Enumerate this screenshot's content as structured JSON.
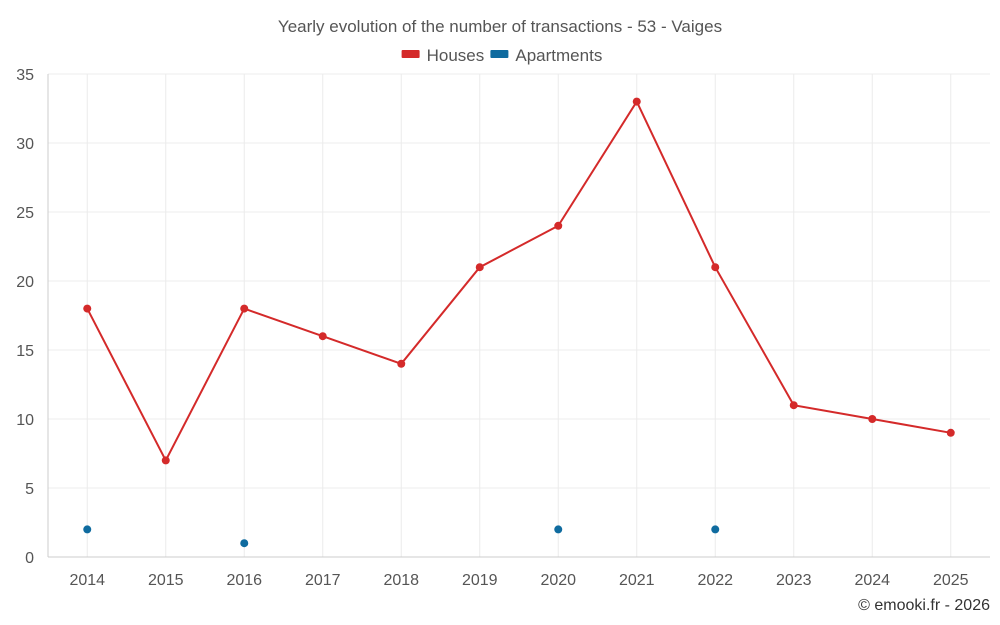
{
  "chart_data": {
    "type": "line",
    "title": "Yearly evolution of the number of transactions - 53 - Vaiges",
    "xlabel": "",
    "ylabel": "",
    "categories": [
      "2014",
      "2015",
      "2016",
      "2017",
      "2018",
      "2019",
      "2020",
      "2021",
      "2022",
      "2023",
      "2024",
      "2025"
    ],
    "ylim": [
      0,
      35
    ],
    "yticks": [
      0,
      5,
      10,
      15,
      20,
      25,
      30,
      35
    ],
    "grid": true,
    "legend_position": "top-center",
    "series": [
      {
        "name": "Houses",
        "color": "#d42a2a",
        "values": [
          18,
          7,
          18,
          16,
          14,
          21,
          24,
          33,
          21,
          11,
          10,
          9
        ]
      },
      {
        "name": "Apartments",
        "color": "#0f6b9f",
        "values": [
          2,
          null,
          1,
          null,
          null,
          null,
          2,
          null,
          2,
          null,
          null,
          null
        ]
      }
    ]
  },
  "credit": "© emooki.fr - 2026"
}
